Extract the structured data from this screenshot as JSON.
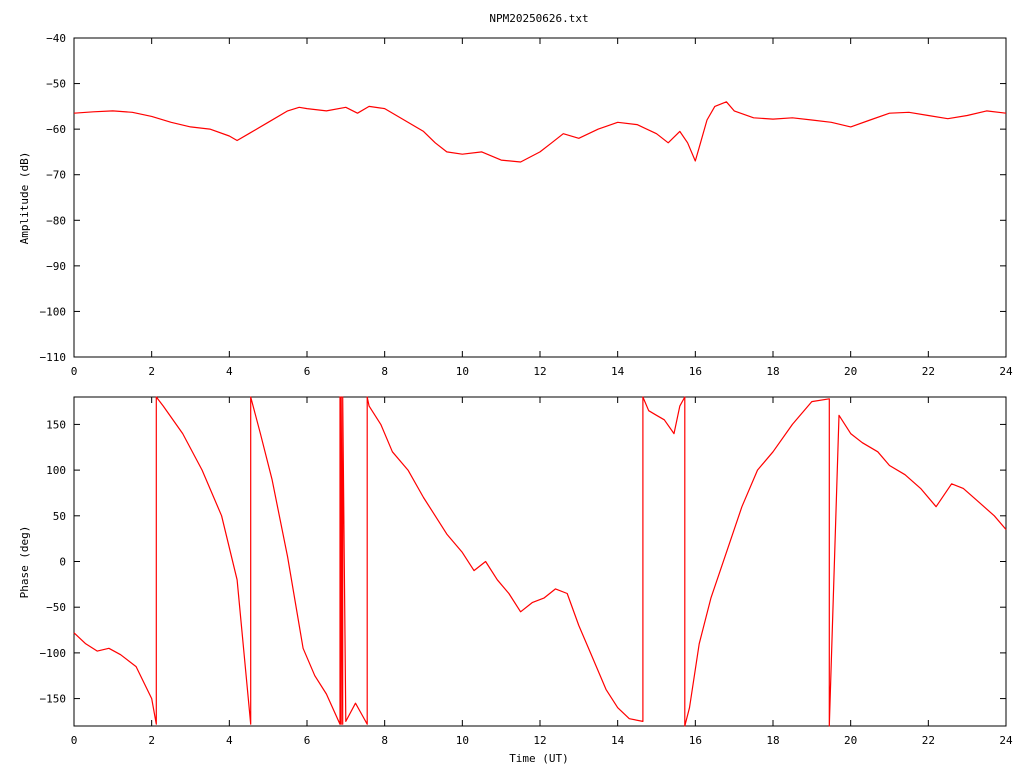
{
  "title": "NPM20250626.txt",
  "colors": {
    "trace": "#ff0000",
    "axes": "#000000",
    "background": "#ffffff"
  },
  "chart_data": [
    {
      "type": "line",
      "title": "NPM20250626.txt",
      "xlabel": "",
      "ylabel": "Amplitude (dB)",
      "xlim": [
        0,
        24
      ],
      "ylim": [
        -110,
        -40
      ],
      "grid": false,
      "xticks": [
        "0",
        "2",
        "4",
        "6",
        "8",
        "10",
        "12",
        "14",
        "16",
        "18",
        "20",
        "22",
        "24"
      ],
      "yticks": [
        "-40",
        "-50",
        "-60",
        "-70",
        "-80",
        "-90",
        "-100",
        "-110"
      ],
      "series": [
        {
          "x": [
            0,
            0.5,
            1,
            1.5,
            2,
            2.5,
            3,
            3.5,
            4,
            4.2,
            4.5,
            5,
            5.5,
            5.8,
            6,
            6.5,
            7,
            7.3,
            7.6,
            8,
            8.5,
            9,
            9.3,
            9.6,
            10,
            10.5,
            11,
            11.5,
            12,
            12.3,
            12.6,
            13,
            13.5,
            14,
            14.5,
            15,
            15.3,
            15.6,
            15.8,
            16,
            16.1,
            16.3,
            16.5,
            16.8,
            17,
            17.5,
            18,
            18.5,
            19,
            19.5,
            20,
            20.5,
            21,
            21.5,
            22,
            22.5,
            23,
            23.5,
            24
          ],
          "y": [
            -56.5,
            -56.2,
            -56,
            -56.3,
            -57.2,
            -58.5,
            -59.5,
            -60,
            -61.5,
            -62.5,
            -61,
            -58.5,
            -56,
            -55.2,
            -55.5,
            -56,
            -55.2,
            -56.5,
            -55,
            -55.5,
            -58,
            -60.5,
            -63,
            -65,
            -65.5,
            -65,
            -66.8,
            -67.2,
            -65,
            -63,
            -61,
            -62,
            -60,
            -58.5,
            -59,
            -61,
            -63,
            -60.5,
            -63,
            -67,
            -64,
            -58,
            -55,
            -54,
            -56,
            -57.5,
            -57.8,
            -57.5,
            -58,
            -58.5,
            -59.5,
            -58,
            -56.5,
            -56.3,
            -57,
            -57.7,
            -57,
            -56,
            -56.5
          ]
        }
      ]
    },
    {
      "type": "line",
      "title": "",
      "xlabel": "Time (UT)",
      "ylabel": "Phase (deg)",
      "xlim": [
        0,
        24
      ],
      "ylim": [
        -180,
        180
      ],
      "grid": false,
      "xticks": [
        "0",
        "2",
        "4",
        "6",
        "8",
        "10",
        "12",
        "14",
        "16",
        "18",
        "20",
        "22",
        "24"
      ],
      "yticks": [
        "150",
        "100",
        "50",
        "0",
        "-50",
        "-100",
        "-150"
      ],
      "series": [
        {
          "x": [
            0,
            0.3,
            0.6,
            0.9,
            1.2,
            1.6,
            2.0,
            2.12,
            2.12,
            2.3,
            2.8,
            3.3,
            3.8,
            4.2,
            4.55,
            4.55,
            4.8,
            5.1,
            5.5,
            5.9,
            6.2,
            6.5,
            6.85,
            6.85,
            6.88,
            6.88,
            6.92,
            6.92,
            7.0,
            7.25,
            7.42,
            7.55,
            7.55,
            7.6,
            7.9,
            8.2,
            8.6,
            9.0,
            9.3,
            9.6,
            10.0,
            10.3,
            10.6,
            10.9,
            11.2,
            11.5,
            11.8,
            12.1,
            12.4,
            12.7,
            13.0,
            13.3,
            13.7,
            14.0,
            14.3,
            14.65,
            14.65,
            14.8,
            15.0,
            15.2,
            15.45,
            15.6,
            15.73,
            15.73,
            15.85,
            16.1,
            16.4,
            16.8,
            17.2,
            17.6,
            18.0,
            18.5,
            19.0,
            19.45,
            19.45,
            19.7,
            20.0,
            20.3,
            20.7,
            21.0,
            21.4,
            21.8,
            22.2,
            22.6,
            22.9,
            23.3,
            23.7,
            24.0
          ],
          "y": [
            -78,
            -90,
            -98,
            -95,
            -102,
            -115,
            -150,
            -178,
            180,
            170,
            140,
            100,
            50,
            -20,
            -178,
            180,
            140,
            90,
            5,
            -95,
            -125,
            -145,
            -178,
            180,
            -178,
            180,
            -178,
            180,
            -175,
            -155,
            -168,
            -178,
            180,
            170,
            150,
            120,
            100,
            70,
            50,
            30,
            10,
            -10,
            0,
            -20,
            -35,
            -55,
            -45,
            -40,
            -30,
            -35,
            -70,
            -100,
            -140,
            -160,
            -172,
            -175,
            180,
            165,
            160,
            155,
            140,
            170,
            180,
            -180,
            -160,
            -90,
            -40,
            10,
            60,
            100,
            120,
            150,
            175,
            178,
            -180,
            160,
            140,
            130,
            120,
            105,
            95,
            80,
            60,
            85,
            80,
            65,
            50,
            35
          ]
        }
      ]
    }
  ]
}
